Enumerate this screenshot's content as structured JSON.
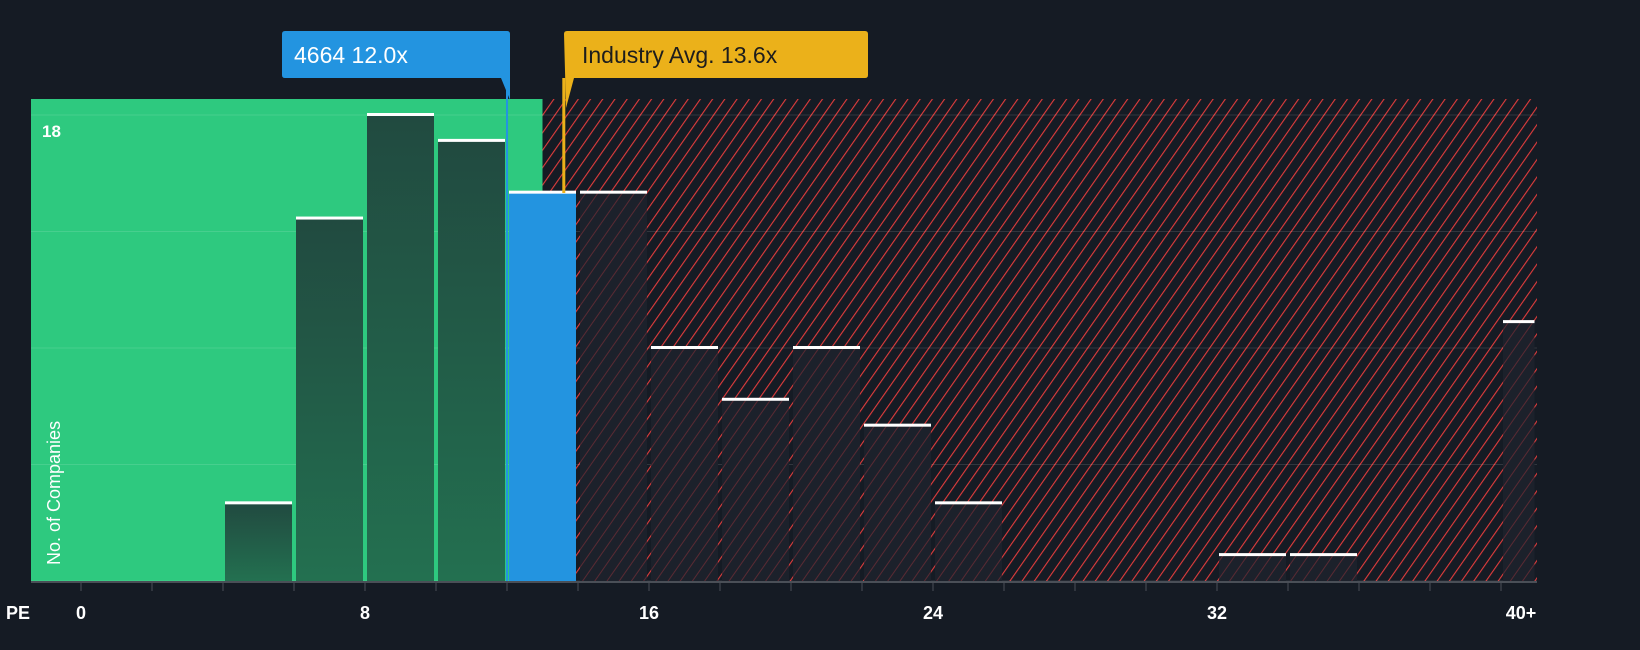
{
  "chart_data": {
    "type": "bar",
    "title": "",
    "xlabel": "PE",
    "ylabel": "No. of Companies",
    "x_ticks": [
      "0",
      "8",
      "16",
      "24",
      "32",
      "40+"
    ],
    "y_tick_labels": [
      "18"
    ],
    "ylim": [
      0,
      18
    ],
    "xlim": [
      -1.4,
      41
    ],
    "bins": [
      {
        "from": 4,
        "to": 6,
        "value": 3
      },
      {
        "from": 6,
        "to": 8,
        "value": 14
      },
      {
        "from": 8,
        "to": 10,
        "value": 18
      },
      {
        "from": 10,
        "to": 12,
        "value": 17
      },
      {
        "from": 12,
        "to": 14,
        "value": 15,
        "highlight": true
      },
      {
        "from": 14,
        "to": 16,
        "value": 15
      },
      {
        "from": 16,
        "to": 18,
        "value": 9
      },
      {
        "from": 18,
        "to": 20,
        "value": 7
      },
      {
        "from": 20,
        "to": 22,
        "value": 9
      },
      {
        "from": 22,
        "to": 24,
        "value": 6
      },
      {
        "from": 24,
        "to": 26,
        "value": 3
      },
      {
        "from": 32,
        "to": 34,
        "value": 1
      },
      {
        "from": 34,
        "to": 36,
        "value": 1
      },
      {
        "from": 40,
        "to": 41,
        "value": 10
      }
    ],
    "fair_zone_end": 13.0,
    "company": {
      "label": "4664 12.0x",
      "value": 12.0
    },
    "industry": {
      "label": "Industry Avg. 13.6x",
      "value": 13.6
    },
    "colors": {
      "good": "#2ec97f",
      "bad": "#e03c3c",
      "company": "#2394e0",
      "industry": "#ebb11a",
      "bg": "#151b24"
    }
  }
}
